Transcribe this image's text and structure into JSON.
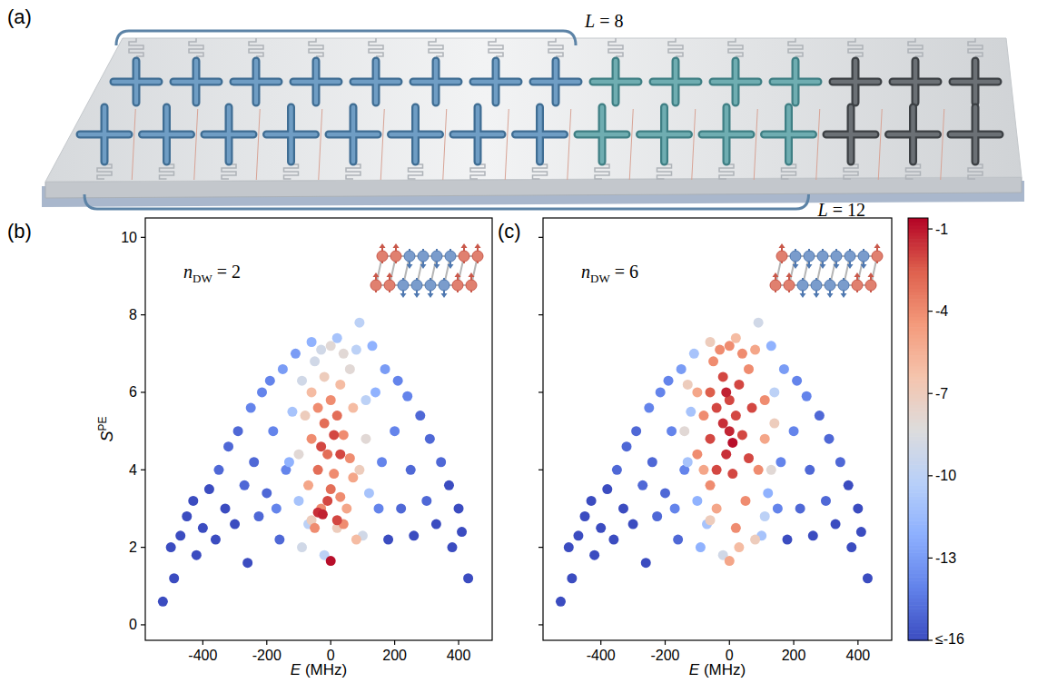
{
  "diagram": {
    "panel_label": "(a)",
    "qubits_per_row": 15,
    "brackets": [
      {
        "label": "L = 8",
        "qubits": 8
      },
      {
        "label": "L = 12",
        "qubits": 12
      }
    ]
  },
  "chart_data": [
    {
      "type": "scatter",
      "panel_label": "(b)",
      "x_label": "E (MHz)",
      "y_label": {
        "base": "S",
        "superscript": "PE"
      },
      "annotation": {
        "base": "n",
        "subscript": "DW",
        "text": " = 2"
      },
      "xlim": [
        -580,
        505
      ],
      "xticks": [
        -400,
        -200,
        0,
        200,
        400
      ],
      "ylim": [
        -0.4,
        10.5
      ],
      "yticks": [
        0,
        2,
        4,
        6,
        8,
        10
      ],
      "x": [
        -525,
        -500,
        -490,
        -470,
        -450,
        -430,
        -420,
        -400,
        -380,
        -360,
        -330,
        -300,
        -260,
        430,
        410,
        400,
        380,
        370,
        330,
        260,
        180,
        -350,
        -320,
        -290,
        -270,
        -240,
        -225,
        -200,
        -160,
        345,
        310,
        300,
        280,
        250,
        220,
        -250,
        -215,
        -190,
        -180,
        -140,
        -170,
        240,
        210,
        200,
        160,
        150,
        -150,
        170,
        130,
        -110,
        -60,
        -130,
        140,
        20,
        -120,
        -100,
        120,
        90,
        -70,
        80,
        110,
        -20,
        -90,
        -50,
        -30,
        100,
        -90,
        0,
        40,
        60,
        -100,
        110,
        -80,
        -20,
        90,
        -60,
        20,
        -60,
        30,
        70,
        80,
        -70,
        50,
        70,
        -60,
        -40,
        0,
        40,
        60,
        10,
        30,
        -30,
        -50,
        40,
        -20,
        20,
        -40,
        -10,
        0,
        -30,
        10,
        30,
        -10,
        20,
        -40,
        -25,
        0
      ],
      "values": [
        0.6,
        2.0,
        1.2,
        2.3,
        2.8,
        3.2,
        1.8,
        2.5,
        3.5,
        2.2,
        3.0,
        2.6,
        1.6,
        1.2,
        2.4,
        3.0,
        2.0,
        3.6,
        2.6,
        2.3,
        2.2,
        4.0,
        4.6,
        5.0,
        3.6,
        4.2,
        2.8,
        3.4,
        2.2,
        4.2,
        4.8,
        3.2,
        5.4,
        4.0,
        3.0,
        5.6,
        6.0,
        6.3,
        5.0,
        4.0,
        3.0,
        5.9,
        6.3,
        5.0,
        4.2,
        3.0,
        6.6,
        6.6,
        7.2,
        7.0,
        7.3,
        4.2,
        6.0,
        7.4,
        5.5,
        3.2,
        3.4,
        7.8,
        2.6,
        7.1,
        5.8,
        1.8,
        6.3,
        6.8,
        7.1,
        2.3,
        2.0,
        7.2,
        7.0,
        6.6,
        4.4,
        4.8,
        5.4,
        6.4,
        4.0,
        2.7,
        2.5,
        6.0,
        6.2,
        5.6,
        2.2,
        3.6,
        3.0,
        3.8,
        4.8,
        5.6,
        5.8,
        4.9,
        4.3,
        3.9,
        3.3,
        3.0,
        2.5,
        2.6,
        5.2,
        5.4,
        4.0,
        4.4,
        3.5,
        4.6,
        4.9,
        4.4,
        3.2,
        2.7,
        2.9,
        2.85,
        1.65
      ],
      "color_values": [
        -16,
        -16,
        -16,
        -16,
        -16,
        -16,
        -16,
        -16,
        -16,
        -16,
        -16,
        -16,
        -16,
        -16,
        -16,
        -16,
        -16,
        -16,
        -16,
        -16,
        -16,
        -15,
        -15,
        -15,
        -15,
        -15,
        -15,
        -15,
        -15,
        -15,
        -15,
        -15,
        -15,
        -15,
        -15,
        -14,
        -14,
        -14,
        -14,
        -14,
        -14,
        -14,
        -14,
        -14,
        -14,
        -14,
        -13,
        -13,
        -12,
        -13,
        -12,
        -12,
        -12,
        -11,
        -11,
        -11,
        -11,
        -10,
        -10,
        -10,
        -10,
        -10,
        -9,
        -9,
        -9,
        -9,
        -9,
        -8,
        -8,
        -8,
        -8,
        -8,
        -7,
        -7,
        -7,
        -7,
        -7,
        -6,
        -6,
        -6,
        -6,
        -5,
        -5,
        -5,
        -4,
        -4,
        -4,
        -4,
        -4,
        -4,
        -4,
        -4,
        -4,
        -4,
        -3,
        -3,
        -3,
        -3,
        -3,
        -2,
        -2,
        -2,
        -2,
        -2,
        -1.5,
        -1.2,
        -0.8
      ]
    },
    {
      "type": "scatter",
      "panel_label": "(c)",
      "x_label": "E (MHz)",
      "annotation": {
        "base": "n",
        "subscript": "DW",
        "text": " = 6"
      },
      "tick_labels": "x",
      "xlim": [
        -580,
        505
      ],
      "xticks": [
        -400,
        -200,
        0,
        200,
        400
      ],
      "ylim": [
        -0.4,
        10.5
      ],
      "yticks": [
        0,
        2,
        4,
        6,
        8,
        10
      ],
      "x": [
        -525,
        -500,
        -490,
        -470,
        -450,
        -430,
        -420,
        -400,
        -380,
        -360,
        -330,
        -300,
        -260,
        430,
        410,
        400,
        380,
        370,
        330,
        260,
        180,
        -350,
        -320,
        -290,
        -270,
        -240,
        -225,
        -200,
        -160,
        345,
        310,
        300,
        280,
        250,
        220,
        -250,
        -215,
        -190,
        -180,
        -140,
        -170,
        240,
        210,
        200,
        160,
        150,
        -150,
        170,
        130,
        -100,
        -90,
        120,
        -70,
        100,
        -130,
        -110,
        -120,
        140,
        110,
        -20,
        90,
        -140,
        130,
        -130,
        140,
        -60,
        -60,
        80,
        20,
        30,
        0,
        -100,
        110,
        -80,
        80,
        -40,
        -80,
        -100,
        110,
        90,
        60,
        -50,
        -30,
        0,
        40,
        -60,
        50,
        20,
        -60,
        -60,
        -40,
        0,
        20,
        40,
        60,
        -40,
        10,
        30,
        -20,
        70,
        -20,
        -10,
        0,
        -10,
        10
      ],
      "values": [
        0.6,
        2.0,
        1.2,
        2.3,
        2.8,
        3.2,
        1.8,
        2.5,
        3.5,
        2.2,
        3.0,
        2.6,
        1.6,
        1.2,
        2.4,
        3.0,
        2.0,
        3.6,
        2.6,
        2.3,
        2.2,
        4.0,
        4.6,
        5.0,
        3.6,
        4.2,
        2.8,
        3.4,
        2.2,
        4.2,
        4.8,
        3.2,
        5.4,
        4.0,
        3.0,
        5.6,
        6.0,
        6.3,
        5.0,
        4.0,
        3.0,
        5.9,
        6.3,
        5.0,
        4.2,
        3.0,
        6.6,
        6.6,
        7.2,
        3.2,
        2.0,
        3.4,
        2.6,
        2.3,
        4.2,
        7.0,
        5.5,
        6.0,
        2.8,
        1.8,
        7.8,
        5.0,
        4.0,
        6.2,
        5.2,
        7.3,
        2.7,
        2.2,
        7.4,
        2.0,
        1.65,
        6.0,
        4.8,
        4.0,
        7.1,
        3.0,
        5.4,
        4.4,
        5.8,
        4.0,
        6.6,
        6.8,
        7.1,
        7.2,
        7.0,
        3.6,
        3.2,
        2.5,
        6.0,
        4.8,
        5.6,
        5.8,
        5.4,
        4.9,
        4.3,
        4.0,
        3.9,
        6.2,
        6.4,
        5.6,
        5.2,
        4.4,
        5.0,
        6.0,
        4.7
      ],
      "color_values": [
        -16,
        -16,
        -16,
        -16,
        -16,
        -16,
        -16,
        -16,
        -16,
        -16,
        -16,
        -16,
        -16,
        -16,
        -16,
        -16,
        -16,
        -16,
        -16,
        -16,
        -16,
        -15,
        -15,
        -15,
        -15,
        -15,
        -15,
        -15,
        -15,
        -15,
        -15,
        -15,
        -15,
        -15,
        -15,
        -14,
        -14,
        -14,
        -14,
        -14,
        -14,
        -14,
        -14,
        -14,
        -14,
        -14,
        -13,
        -13,
        -12,
        -12,
        -12,
        -12,
        -11,
        -11,
        -11,
        -11,
        -11,
        -10,
        -10,
        -9,
        -9,
        -8,
        -8,
        -7,
        -7,
        -7,
        -7,
        -7,
        -6,
        -6,
        -5,
        -5,
        -5,
        -5,
        -5,
        -5,
        -4,
        -4,
        -4,
        -4,
        -4,
        -4,
        -4,
        -4,
        -4,
        -4,
        -4,
        -4,
        -2.5,
        -2,
        -2,
        -2,
        -2,
        -2,
        -2,
        -2,
        -2,
        -2,
        -2,
        -2,
        -1.5,
        -1.5,
        -1.3,
        -1.2,
        -0.8
      ],
      "colorbar": {
        "range": [
          -16,
          -0.6
        ],
        "ticks": [
          -1,
          -4,
          -7,
          -10,
          -13,
          {
            "value": -16,
            "label": "≤-16"
          }
        ]
      }
    }
  ]
}
